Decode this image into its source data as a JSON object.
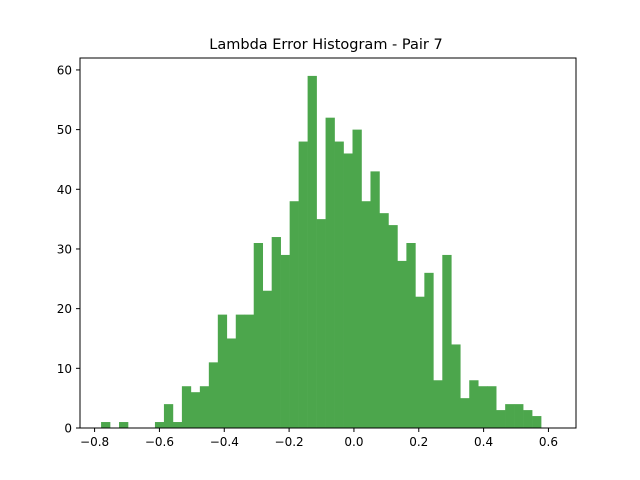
{
  "chart_data": {
    "type": "bar",
    "title": "Lambda Error Histogram - Pair 7",
    "xlabel": "",
    "ylabel": "",
    "bar_color": "#4ca64c",
    "xlim": [
      -0.845,
      0.685
    ],
    "ylim": [
      0,
      62
    ],
    "x_ticks": [
      -0.8,
      -0.6,
      -0.4,
      -0.2,
      0.0,
      0.2,
      0.4,
      0.6
    ],
    "x_tick_labels": [
      "−0.8",
      "−0.6",
      "−0.4",
      "−0.2",
      "0.0",
      "0.2",
      "0.4",
      "0.6"
    ],
    "y_ticks": [
      0,
      10,
      20,
      30,
      40,
      50,
      60
    ],
    "y_tick_labels": [
      "0",
      "10",
      "20",
      "30",
      "40",
      "50",
      "60"
    ],
    "grid": false,
    "bins_start": -0.78,
    "bin_width": 0.0277,
    "counts": [
      1,
      0,
      1,
      0,
      0,
      0,
      1,
      4,
      1,
      7,
      6,
      7,
      11,
      19,
      15,
      19,
      19,
      31,
      23,
      32,
      29,
      38,
      48,
      59,
      35,
      52,
      48,
      46,
      50,
      38,
      43,
      36,
      34,
      28,
      31,
      22,
      26,
      8,
      29,
      14,
      5,
      8,
      7,
      7,
      3,
      4,
      4,
      3,
      2
    ]
  }
}
